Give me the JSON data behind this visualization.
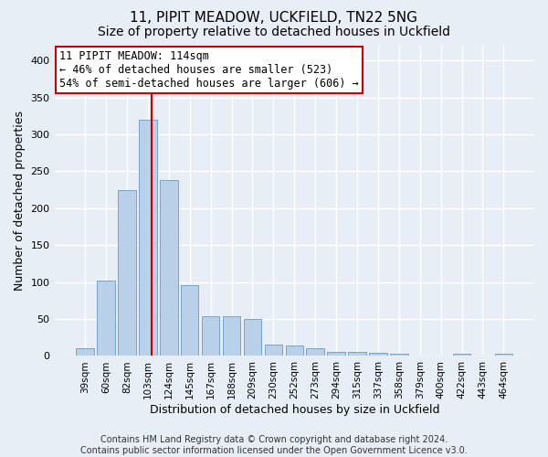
{
  "title1": "11, PIPIT MEADOW, UCKFIELD, TN22 5NG",
  "title2": "Size of property relative to detached houses in Uckfield",
  "xlabel": "Distribution of detached houses by size in Uckfield",
  "ylabel": "Number of detached properties",
  "categories": [
    "39sqm",
    "60sqm",
    "82sqm",
    "103sqm",
    "124sqm",
    "145sqm",
    "167sqm",
    "188sqm",
    "209sqm",
    "230sqm",
    "252sqm",
    "273sqm",
    "294sqm",
    "315sqm",
    "337sqm",
    "358sqm",
    "379sqm",
    "400sqm",
    "422sqm",
    "443sqm",
    "464sqm"
  ],
  "values": [
    10,
    102,
    224,
    320,
    238,
    96,
    54,
    54,
    50,
    15,
    14,
    10,
    6,
    5,
    4,
    3,
    0,
    0,
    3,
    0,
    3
  ],
  "bar_color": "#b8d0e8",
  "bar_edge_color": "#6699cc",
  "annotation_text": "11 PIPIT MEADOW: 114sqm\n← 46% of detached houses are smaller (523)\n54% of semi-detached houses are larger (606) →",
  "annotation_box_color": "#ffffff",
  "annotation_box_edge_color": "#cc0000",
  "vline_color": "#cc0000",
  "footer1": "Contains HM Land Registry data © Crown copyright and database right 2024.",
  "footer2": "Contains public sector information licensed under the Open Government Licence v3.0.",
  "ylim": [
    0,
    420
  ],
  "background_color": "#e8eef5",
  "grid_color": "#ffffff",
  "title_fontsize": 11,
  "subtitle_fontsize": 10,
  "axis_label_fontsize": 9,
  "tick_fontsize": 7.5,
  "footer_fontsize": 7,
  "vline_x": 3.18
}
